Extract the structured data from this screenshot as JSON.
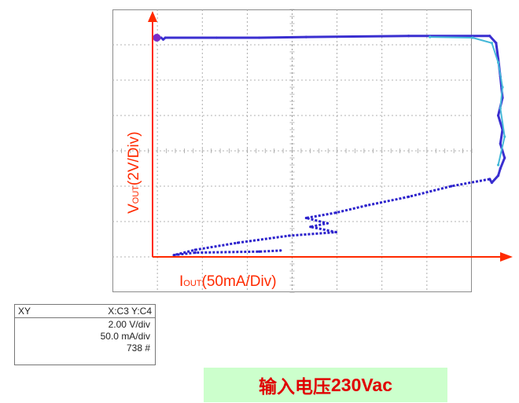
{
  "chart_data": {
    "type": "scatter",
    "mode": "XY",
    "x_label_main": "I",
    "x_label_sub": "OUT",
    "x_label_rest": "(50mA/Div)",
    "y_label_main": "V",
    "y_label_sub": "OUT",
    "y_label_rest": "(2V/Div)",
    "x_div_scale": "50mA/Div",
    "y_div_scale": "2V/Div",
    "grid": true,
    "series": [
      {
        "color": "#3a2fd0",
        "x_div": [
          0.2,
          0.25,
          0.3,
          1.5,
          2.5,
          3.6,
          6.0,
          7.9,
          8.05,
          8.1,
          8.15,
          8.2,
          8.1,
          8.2,
          8.15,
          8.25,
          8.15,
          8.1,
          7.95,
          7.9
        ],
        "y_div": [
          6.2,
          6.15,
          6.2,
          6.2,
          6.2,
          6.22,
          6.25,
          6.25,
          6.05,
          5.6,
          5.1,
          4.5,
          4.0,
          3.6,
          3.2,
          2.8,
          2.5,
          2.3,
          2.1,
          2.2
        ]
      },
      {
        "color": "#2c22cc",
        "x_div": [
          7.9,
          7.0,
          6.0,
          5.0,
          4.3,
          3.6,
          4.1,
          3.7,
          4.3,
          3.2,
          2.0,
          1.0,
          0.5,
          1.0,
          2.5,
          3.0
        ],
        "y_div": [
          2.2,
          2.0,
          1.7,
          1.45,
          1.25,
          1.1,
          0.95,
          0.85,
          0.7,
          0.6,
          0.4,
          0.2,
          0.05,
          0.12,
          0.15,
          0.18
        ]
      },
      {
        "color": "#45b8d8",
        "x_div": [
          6.5,
          7.5,
          7.95,
          8.1,
          8.2,
          8.15,
          8.25,
          8.1
        ],
        "y_div": [
          6.22,
          6.2,
          6.05,
          5.5,
          4.8,
          4.2,
          3.4,
          2.6
        ]
      }
    ]
  },
  "info_box": {
    "mode": "XY",
    "channels": "X:C3 Y:C4",
    "y_scale": "2.00 V/div",
    "x_scale": "50.0 mA/div",
    "count": "738 #"
  },
  "banner": {
    "text_cn": "输入电压",
    "text_value": "230Vac"
  },
  "colors": {
    "axis_arrow": "#ff2a00",
    "label": "#ff2a00",
    "banner_bg": "#ccffcc",
    "banner_text": "#e00000",
    "grid": "#9a9a9a"
  }
}
